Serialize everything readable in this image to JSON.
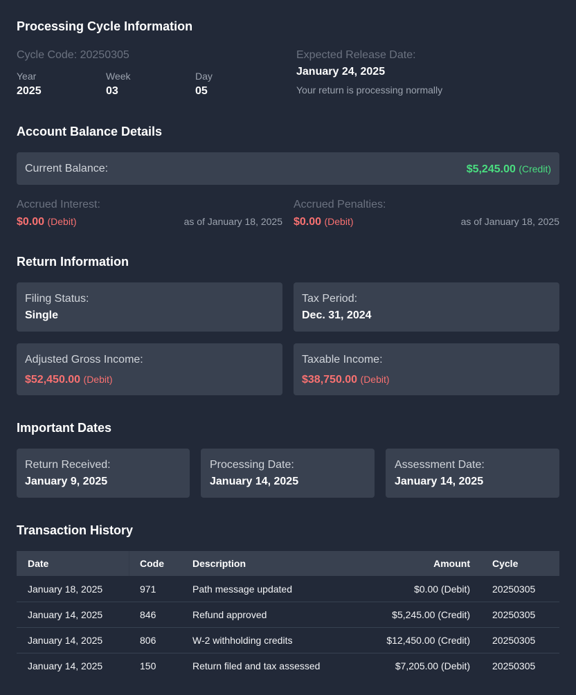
{
  "cycle": {
    "title": "Processing Cycle Information",
    "cycle_code": "Cycle Code: 20250305",
    "fields": [
      {
        "label": "Year",
        "value": "2025"
      },
      {
        "label": "Week",
        "value": "03"
      },
      {
        "label": "Day",
        "value": "05"
      }
    ],
    "release": {
      "label": "Expected Release Date:",
      "value": "January 24, 2025",
      "note": "Your return is processing normally"
    }
  },
  "balance": {
    "title": "Account Balance Details",
    "current": {
      "label": "Current Balance:",
      "amount": "$5,245.00",
      "kind": "(Credit)"
    },
    "accrued": [
      {
        "label": "Accrued Interest:",
        "amount": "$0.00",
        "kind": "(Debit)",
        "as_of": "as of January 18, 2025"
      },
      {
        "label": "Accrued Penalties:",
        "amount": "$0.00",
        "kind": "(Debit)",
        "as_of": "as of January 18, 2025"
      }
    ]
  },
  "return_info": {
    "title": "Return Information",
    "cards": [
      {
        "label": "Filing Status:",
        "value": "Single"
      },
      {
        "label": "Tax Period:",
        "value": "Dec. 31, 2024"
      },
      {
        "label": "Adjusted Gross Income:",
        "value": "$52,450.00",
        "kind": "(Debit)"
      },
      {
        "label": "Taxable Income:",
        "value": "$38,750.00",
        "kind": "(Debit)"
      }
    ]
  },
  "dates": {
    "title": "Important Dates",
    "cards": [
      {
        "label": "Return Received:",
        "value": "January 9, 2025"
      },
      {
        "label": "Processing Date:",
        "value": "January 14, 2025"
      },
      {
        "label": "Assessment Date:",
        "value": "January 14, 2025"
      }
    ]
  },
  "transactions": {
    "title": "Transaction History",
    "columns": [
      "Date",
      "Code",
      "Description",
      "Amount",
      "Cycle"
    ],
    "rows": [
      [
        "January 18, 2025",
        "971",
        "Path message updated",
        "$0.00 (Debit)",
        "20250305"
      ],
      [
        "January 14, 2025",
        "846",
        "Refund approved",
        "$5,245.00 (Credit)",
        "20250305"
      ],
      [
        "January 14, 2025",
        "806",
        "W-2 withholding credits",
        "$12,450.00 (Credit)",
        "20250305"
      ],
      [
        "January 14, 2025",
        "150",
        "Return filed and tax assessed",
        "$7,205.00 (Debit)",
        "20250305"
      ]
    ]
  }
}
